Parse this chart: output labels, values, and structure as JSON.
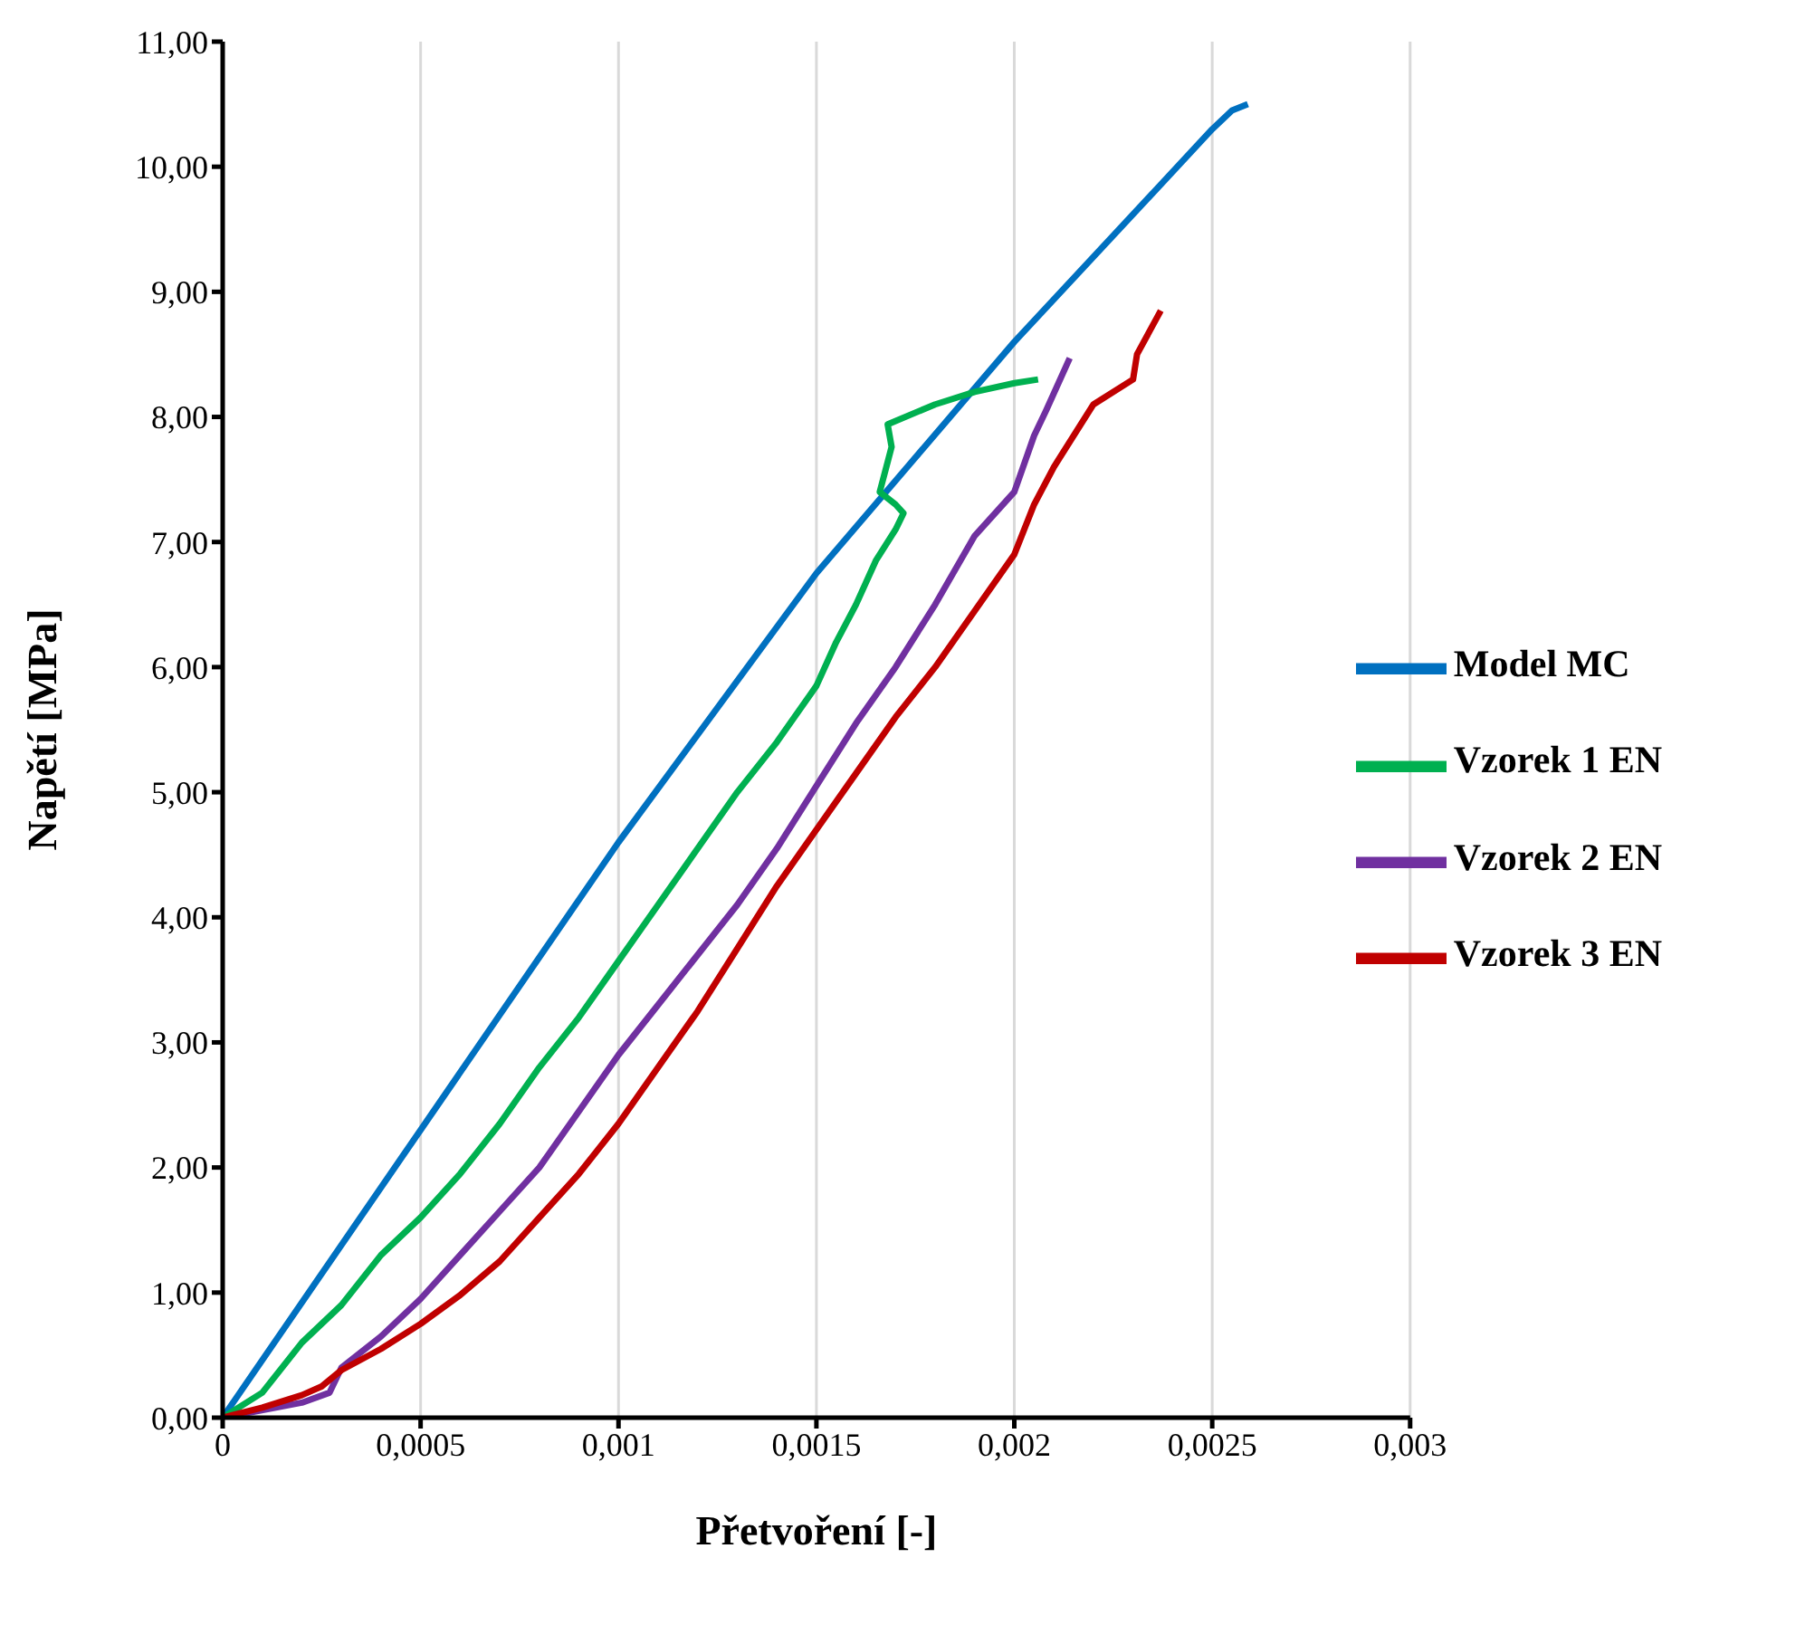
{
  "chart_data": {
    "type": "line",
    "xlabel": "Přetvoření [-]",
    "ylabel": "Napětí [MPa]",
    "xlim": [
      0,
      0.003
    ],
    "ylim": [
      0,
      11
    ],
    "xticks": [
      0,
      {
        "value": 0.0005,
        "label": "0,0005"
      },
      {
        "value": 0.001,
        "label": "0,001"
      },
      {
        "value": 0.0015,
        "label": "0,0015"
      },
      {
        "value": 0.002,
        "label": "0,002"
      },
      {
        "value": 0.0025,
        "label": "0,0025"
      },
      {
        "value": 0.003,
        "label": "0,003"
      }
    ],
    "yticks": [
      {
        "value": 0,
        "label": "0,00"
      },
      {
        "value": 1,
        "label": "1,00"
      },
      {
        "value": 2,
        "label": "2,00"
      },
      {
        "value": 3,
        "label": "3,00"
      },
      {
        "value": 4,
        "label": "4,00"
      },
      {
        "value": 5,
        "label": "5,00"
      },
      {
        "value": 6,
        "label": "6,00"
      },
      {
        "value": 7,
        "label": "7,00"
      },
      {
        "value": 8,
        "label": "8,00"
      },
      {
        "value": 9,
        "label": "9,00"
      },
      {
        "value": 10,
        "label": "10,00"
      },
      {
        "value": 11,
        "label": "11,00"
      }
    ],
    "grid": "x",
    "legend": "right",
    "marker": "none",
    "line_style": "solid",
    "series": [
      {
        "name": "Model MC",
        "color": "#0070c0",
        "x": [
          0,
          0.0005,
          0.001,
          0.0015,
          0.002,
          0.0025,
          0.00255,
          0.00259
        ],
        "values": [
          0,
          2.3,
          4.6,
          6.75,
          8.6,
          10.3,
          10.45,
          10.5
        ]
      },
      {
        "name": "Vzorek 1 EN",
        "color": "#00b050",
        "x": [
          0,
          0.0001,
          0.0002,
          0.0003,
          0.0004,
          0.0005,
          0.0006,
          0.0007,
          0.0008,
          0.0009,
          0.001,
          0.0011,
          0.0012,
          0.0013,
          0.0014,
          0.0015,
          0.00155,
          0.0016,
          0.00165,
          0.0017,
          0.00172,
          0.0017,
          0.00166,
          0.00169,
          0.00168,
          0.0018,
          0.0019,
          0.002,
          0.00206
        ],
        "values": [
          0,
          0.2,
          0.6,
          0.9,
          1.3,
          1.6,
          1.95,
          2.35,
          2.8,
          3.2,
          3.65,
          4.1,
          4.55,
          5.0,
          5.4,
          5.85,
          6.2,
          6.5,
          6.85,
          7.1,
          7.23,
          7.3,
          7.4,
          7.76,
          7.94,
          8.1,
          8.2,
          8.27,
          8.3
        ]
      },
      {
        "name": "Vzorek 2 EN",
        "color": "#7030a0",
        "x": [
          0,
          0.0002,
          0.00027,
          0.0003,
          0.0004,
          0.0005,
          0.0006,
          0.0007,
          0.0008,
          0.0009,
          0.001,
          0.0011,
          0.0012,
          0.0013,
          0.0014,
          0.0015,
          0.0016,
          0.0017,
          0.0018,
          0.0019,
          0.002,
          0.00205,
          0.00208,
          0.00214
        ],
        "values": [
          0,
          0.12,
          0.2,
          0.4,
          0.65,
          0.95,
          1.3,
          1.65,
          2.0,
          2.45,
          2.9,
          3.3,
          3.7,
          4.1,
          4.55,
          5.05,
          5.55,
          6.0,
          6.5,
          7.05,
          7.4,
          7.85,
          8.05,
          8.47
        ]
      },
      {
        "name": "Vzorek 3 EN",
        "color": "#c00000",
        "x": [
          0,
          0.0001,
          0.0002,
          0.00025,
          0.0003,
          0.0004,
          0.0005,
          0.0006,
          0.0007,
          0.0008,
          0.0009,
          0.001,
          0.0011,
          0.0012,
          0.0013,
          0.0014,
          0.0015,
          0.0016,
          0.0017,
          0.0018,
          0.0019,
          0.002,
          0.00205,
          0.0021,
          0.0022,
          0.0023,
          0.00231,
          0.00237
        ],
        "values": [
          0,
          0.08,
          0.18,
          0.25,
          0.38,
          0.55,
          0.75,
          0.98,
          1.25,
          1.6,
          1.95,
          2.35,
          2.8,
          3.25,
          3.75,
          4.25,
          4.7,
          5.15,
          5.6,
          6.0,
          6.45,
          6.9,
          7.3,
          7.6,
          8.1,
          8.3,
          8.5,
          8.85
        ]
      }
    ]
  }
}
